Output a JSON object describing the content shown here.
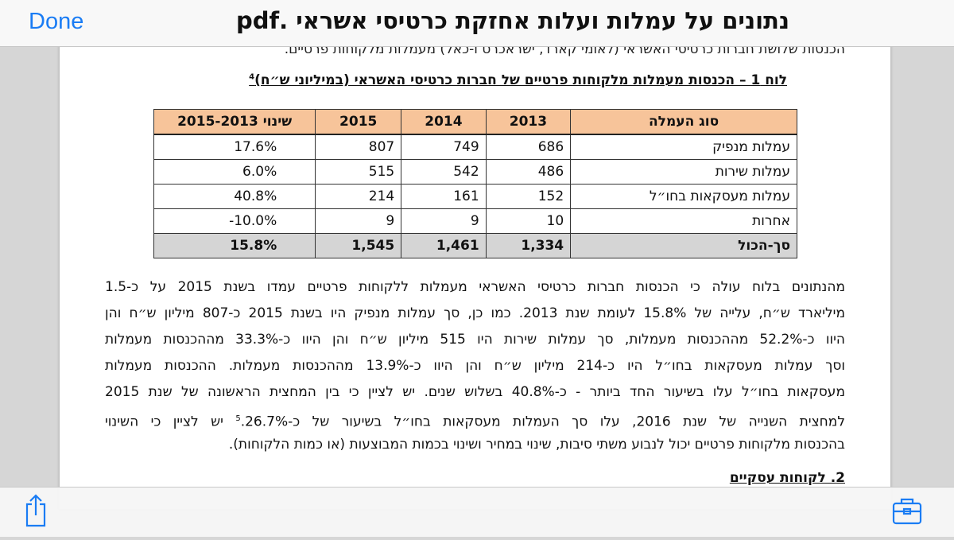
{
  "header": {
    "done": "Done",
    "title": "נתונים על עמלות ועלות אחזקת כרטיסי אשראי .pdf"
  },
  "document": {
    "clipped_line": "הכנסות שלושת חברות כרטיסי האשראי (לאומי קארד, ישראכרט ו-כאל) מעמלות מלקוחות פרטיים.",
    "caption": "לוח 1 – הכנסות מעמלות מלקוחות פרטיים של חברות כרטיסי האשראי (במיליוני ש״ח)",
    "caption_footnote": "4",
    "table": {
      "header": [
        "סוג העמלה",
        "2013",
        "2014",
        "2015",
        "שינוי 2015-2013"
      ],
      "rows": [
        [
          "עמלות מנפיק",
          "686",
          "749",
          "807",
          "17.6%"
        ],
        [
          "עמלות שירות",
          "486",
          "542",
          "515",
          "6.0%"
        ],
        [
          "עמלות מעסקאות בחו״ל",
          "152",
          "161",
          "214",
          "40.8%"
        ],
        [
          "אחרות",
          "10",
          "9",
          "9",
          "-10.0%"
        ]
      ],
      "total": [
        "סך-הכול",
        "1,334",
        "1,461",
        "1,545",
        "15.8%"
      ]
    },
    "paragraph": [
      "מהנתונים בלוח עולה כי הכנסות חברות כרטיסי האשראי מעמלות ללקוחות פרטיים עמדו בשנת 2015 על כ-1.5",
      "מיליארד ש״ח, עלייה של 15.8% לעומת שנת 2013. כמו כן, סך עמלות מנפיק היו בשנת 2015 כ-807 מיליון ש״ח והן",
      "היוו כ-52.2% מההכנסות מעמלות, סך עמלות שירות היו 515 מיליון ש״ח והן היוו כ-33.3% מההכנסות מעמלות",
      "וסך עמלות מעסקאות בחו״ל היו כ-214 מיליון ש״ח והן היוו כ-13.9% מההכנסות מעמלות. ההכנסות מעמלות",
      "מעסקאות בחו״ל עלו בשיעור החד ביותר - כ-40.8% בשלוש שנים. יש לציין כי בין המחצית הראשונה של שנת 2015",
      {
        "before": "למחצית השנייה של שנת 2016, עלו סך העמלות מעסקאות בחו״ל בשיעור של כ-26.7%.",
        "footnote": "5",
        "after": " יש לציין כי השינוי"
      },
      "בהכנסות מלקוחות פרטיים יכול לנבוע משתי סיבות, שינוי במחיר ושינוי בכמות המבוצעות (או כמות הלקוחות)."
    ],
    "section_heading": "2. לקוחות עסקיים"
  }
}
